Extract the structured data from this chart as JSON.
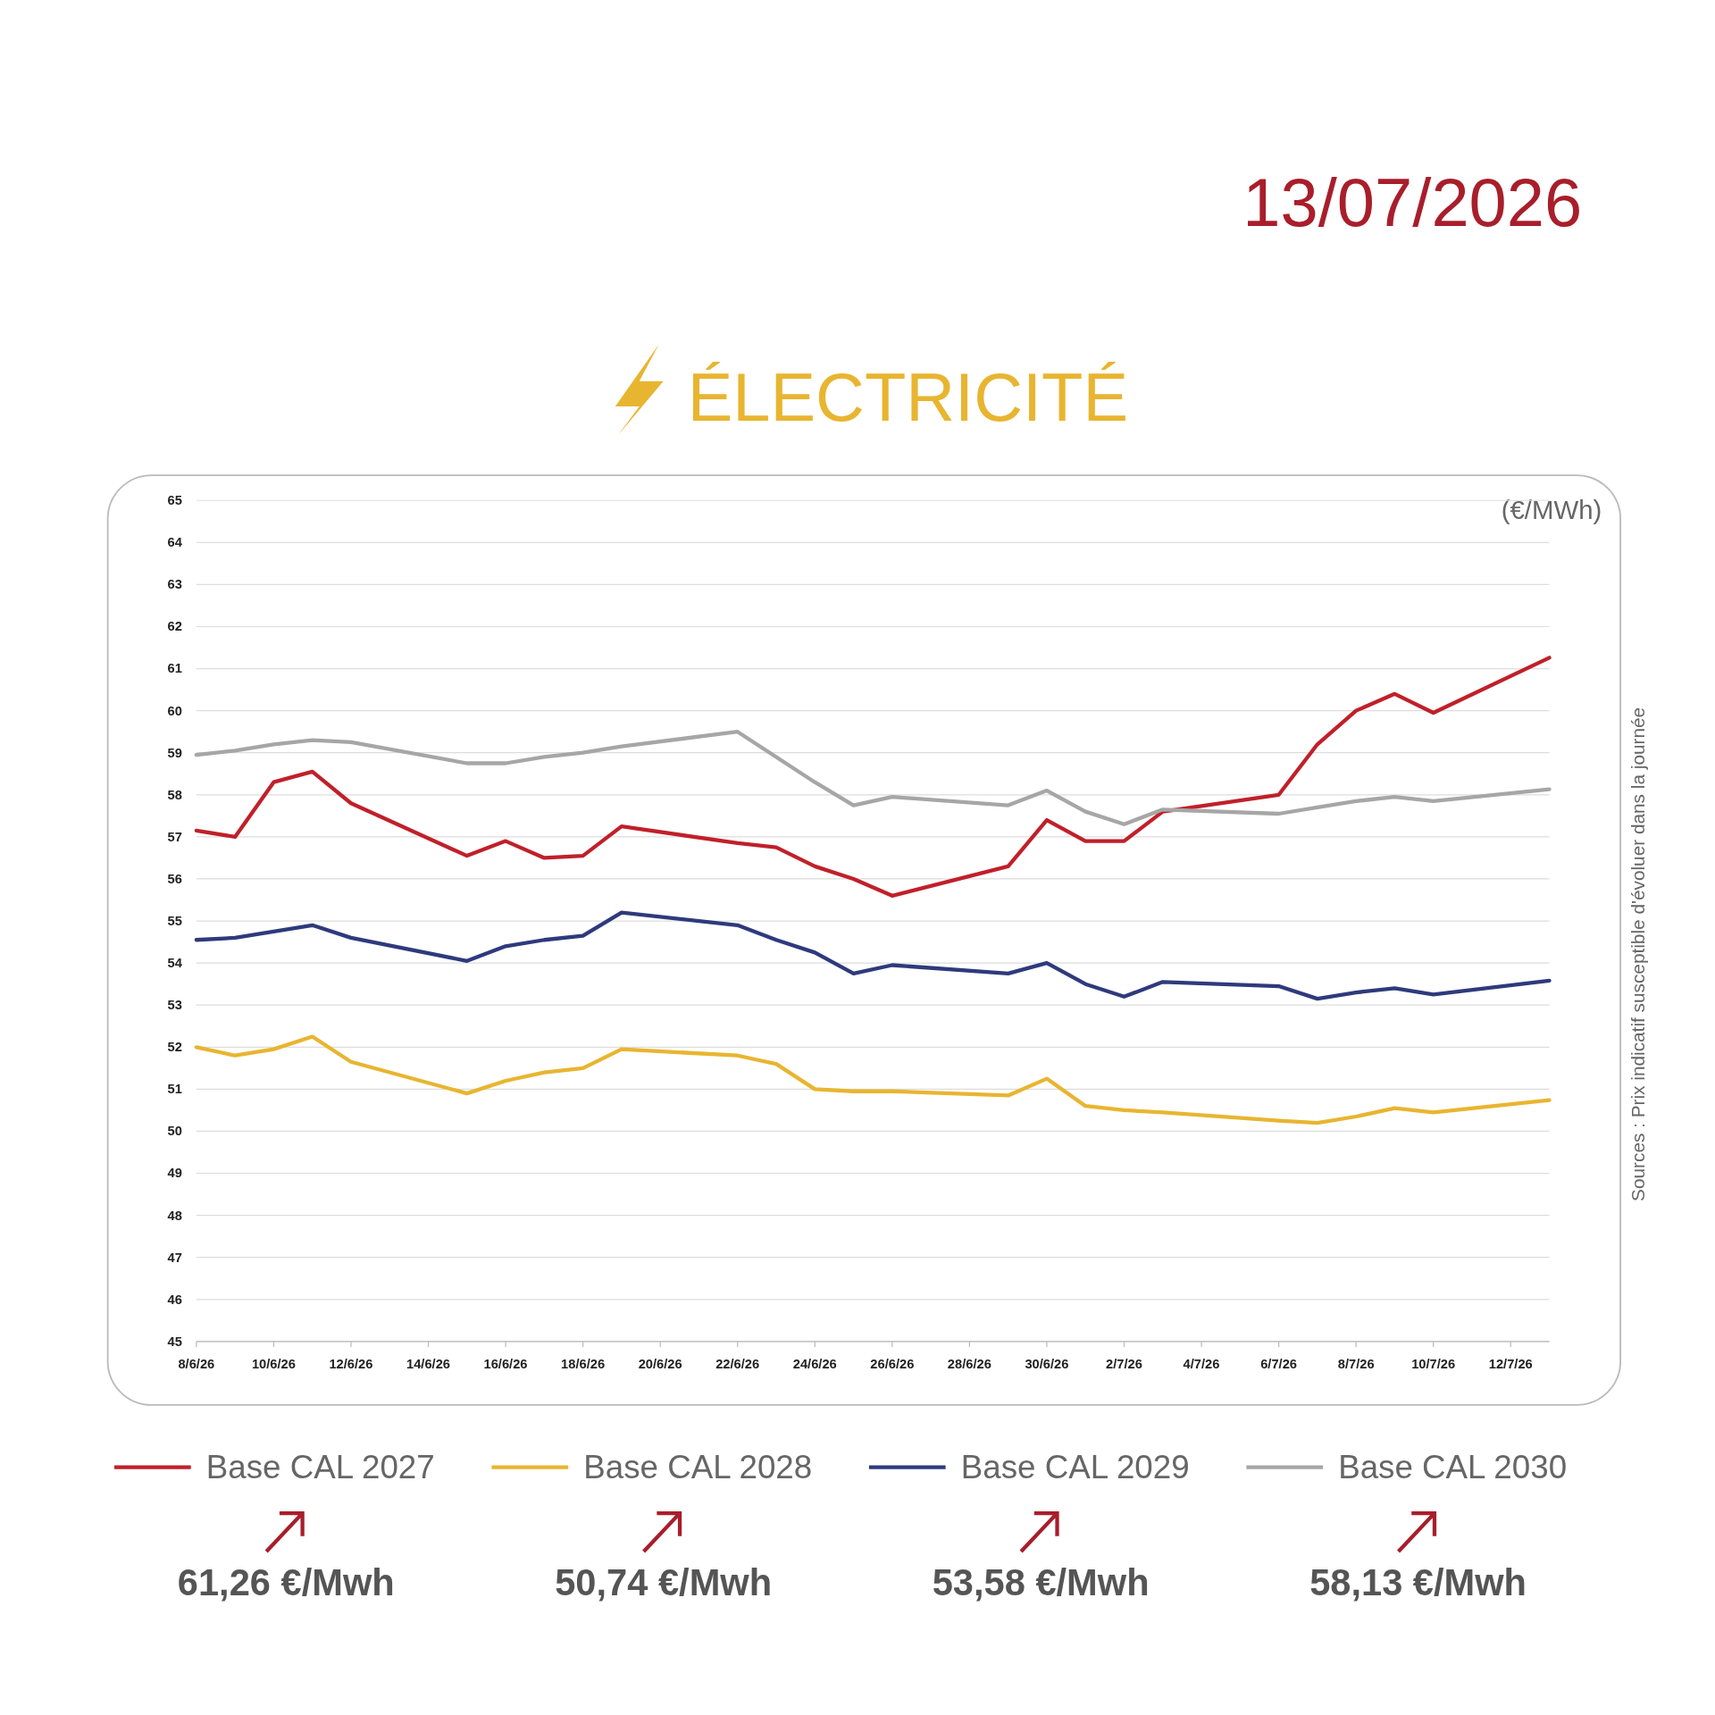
{
  "chart_data": {
    "type": "line",
    "title": "ÉLECTRICITÉ",
    "subtitle": "13/07/2026",
    "ylabel": "(€/MWh)",
    "x": [
      "2026-06-08",
      "2026-06-09",
      "2026-06-10",
      "2026-06-11",
      "2026-06-12",
      "2026-06-15",
      "2026-06-16",
      "2026-06-17",
      "2026-06-18",
      "2026-06-19",
      "2026-06-22",
      "2026-06-23",
      "2026-06-24",
      "2026-06-25",
      "2026-06-26",
      "2026-06-29",
      "2026-06-30",
      "2026-07-01",
      "2026-07-02",
      "2026-07-03",
      "2026-07-06",
      "2026-07-07",
      "2026-07-08",
      "2026-07-09",
      "2026-07-10",
      "2026-07-13"
    ],
    "series": [
      {
        "name": "Base CAL 2027",
        "color": "#c0202a",
        "values": [
          57.15,
          57.0,
          58.3,
          58.55,
          57.8,
          56.55,
          56.9,
          56.5,
          56.55,
          57.25,
          56.85,
          56.75,
          56.3,
          56.0,
          55.6,
          56.3,
          57.4,
          56.9,
          56.9,
          57.6,
          58.0,
          59.2,
          60.0,
          60.4,
          59.95,
          61.26
        ]
      },
      {
        "name": "Base CAL 2028",
        "color": "#e8b530",
        "values": [
          52.0,
          51.8,
          51.95,
          52.25,
          51.65,
          50.9,
          51.2,
          51.4,
          51.5,
          51.95,
          51.8,
          51.6,
          51.0,
          50.95,
          50.95,
          50.85,
          51.25,
          50.6,
          50.5,
          50.45,
          50.25,
          50.2,
          50.35,
          50.55,
          50.45,
          50.74
        ]
      },
      {
        "name": "Base CAL 2029",
        "color": "#2e3a7c",
        "values": [
          54.55,
          54.6,
          54.75,
          54.9,
          54.6,
          54.05,
          54.4,
          54.55,
          54.65,
          55.2,
          54.9,
          54.55,
          54.25,
          53.75,
          53.95,
          53.75,
          54.0,
          53.5,
          53.2,
          53.55,
          53.45,
          53.15,
          53.3,
          53.4,
          53.25,
          53.58
        ]
      },
      {
        "name": "Base CAL 2030",
        "color": "#a6a6a6",
        "values": [
          58.95,
          59.05,
          59.2,
          59.3,
          59.25,
          58.75,
          58.75,
          58.9,
          59.0,
          59.15,
          59.5,
          58.9,
          58.3,
          57.75,
          57.95,
          57.75,
          58.1,
          57.6,
          57.3,
          57.65,
          57.55,
          57.7,
          57.85,
          57.95,
          57.85,
          58.13
        ]
      }
    ],
    "xlim": [
      "2026-06-08",
      "2026-07-13"
    ],
    "xticks": [
      {
        "value": "2026-06-08",
        "label": "8/6/26"
      },
      {
        "value": "2026-06-10",
        "label": "10/6/26"
      },
      {
        "value": "2026-06-12",
        "label": "12/6/26"
      },
      {
        "value": "2026-06-14",
        "label": "14/6/26"
      },
      {
        "value": "2026-06-16",
        "label": "16/6/26"
      },
      {
        "value": "2026-06-18",
        "label": "18/6/26"
      },
      {
        "value": "2026-06-20",
        "label": "20/6/26"
      },
      {
        "value": "2026-06-22",
        "label": "22/6/26"
      },
      {
        "value": "2026-06-24",
        "label": "24/6/26"
      },
      {
        "value": "2026-06-26",
        "label": "26/6/26"
      },
      {
        "value": "2026-06-28",
        "label": "28/6/26"
      },
      {
        "value": "2026-06-30",
        "label": "30/6/26"
      },
      {
        "value": "2026-07-02",
        "label": "2/7/26"
      },
      {
        "value": "2026-07-04",
        "label": "4/7/26"
      },
      {
        "value": "2026-07-06",
        "label": "6/7/26"
      },
      {
        "value": "2026-07-08",
        "label": "8/7/26"
      },
      {
        "value": "2026-07-10",
        "label": "10/7/26"
      },
      {
        "value": "2026-07-12",
        "label": "12/7/26"
      }
    ],
    "ylim": [
      45,
      65
    ],
    "yticks": [
      45,
      46,
      47,
      48,
      49,
      50,
      51,
      52,
      53,
      54,
      55,
      56,
      57,
      58,
      59,
      60,
      61,
      62,
      63,
      64,
      65
    ],
    "grid": "y",
    "legend": "bottom",
    "marker": "none",
    "line_style": "solid",
    "annotations": [
      "61,26 €/Mwh",
      "50,74 €/Mwh",
      "53,58 €/Mwh",
      "58,13 €/Mwh",
      "Sources : Prix indicatif susceptible d'évoluer dans la journée"
    ]
  }
}
